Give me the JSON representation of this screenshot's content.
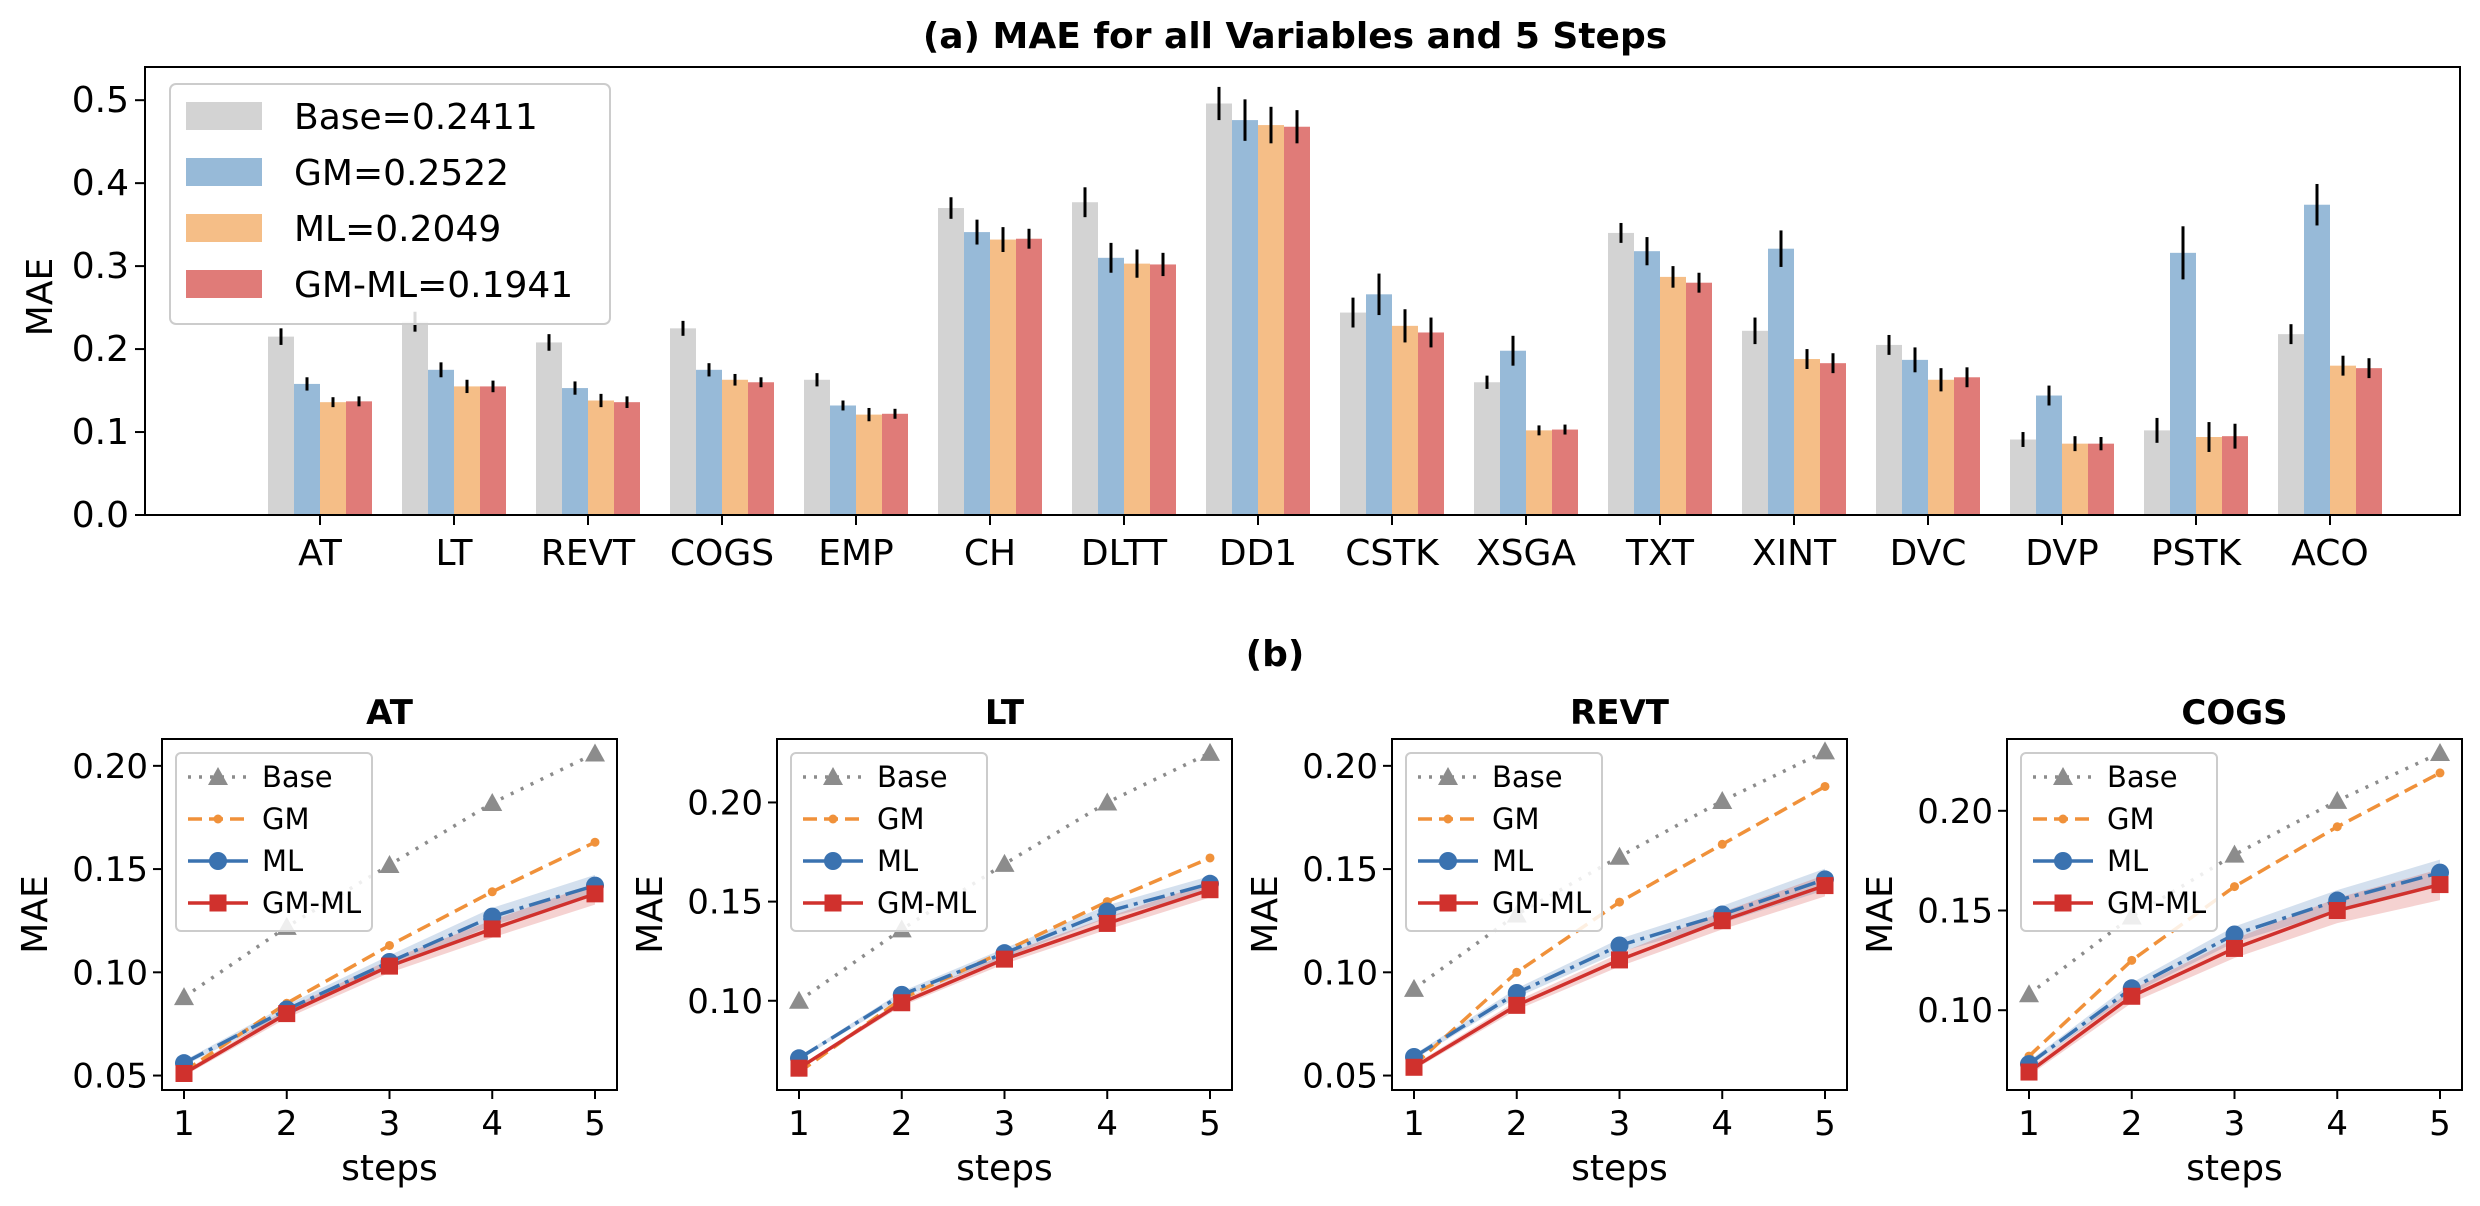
{
  "colors": {
    "Base_bar": "#d3d3d3",
    "GM_bar": "#97bad8",
    "ML_bar": "#f5be87",
    "GM-ML_bar": "#e07b78",
    "Base_line": "#8c8c8c",
    "GM_line": "#f0913a",
    "ML_line": "#3a72b0",
    "GM-ML_line": "#d0312d"
  },
  "chart_data": [
    {
      "id": "a",
      "type": "bar",
      "title": "(a) MAE for all Variables and 5 Steps",
      "xlabel": "",
      "ylabel": "MAE",
      "ylim": [
        0,
        0.54
      ],
      "yticks": [
        "0.0",
        "0.1",
        "0.2",
        "0.3",
        "0.4",
        "0.5"
      ],
      "legend_position": "top-left",
      "categories": [
        "AT",
        "LT",
        "REVT",
        "COGS",
        "EMP",
        "CH",
        "DLTT",
        "DD1",
        "CSTK",
        "XSGA",
        "TXT",
        "XINT",
        "DVC",
        "DVP",
        "PSTK",
        "ACO"
      ],
      "series": [
        {
          "name": "Base",
          "legend_label": "Base=0.2411",
          "values": [
            0.215,
            0.233,
            0.208,
            0.225,
            0.163,
            0.37,
            0.377,
            0.496,
            0.244,
            0.16,
            0.34,
            0.222,
            0.205,
            0.091,
            0.102,
            0.218
          ],
          "errors": [
            0.01,
            0.012,
            0.01,
            0.009,
            0.008,
            0.013,
            0.018,
            0.02,
            0.018,
            0.008,
            0.012,
            0.016,
            0.012,
            0.009,
            0.015,
            0.012
          ]
        },
        {
          "name": "GM",
          "legend_label": "GM=0.2522",
          "values": [
            0.158,
            0.175,
            0.153,
            0.175,
            0.132,
            0.341,
            0.31,
            0.476,
            0.266,
            0.198,
            0.318,
            0.321,
            0.187,
            0.144,
            0.316,
            0.374
          ],
          "errors": [
            0.008,
            0.009,
            0.008,
            0.008,
            0.006,
            0.015,
            0.018,
            0.025,
            0.025,
            0.018,
            0.017,
            0.022,
            0.015,
            0.012,
            0.032,
            0.025
          ]
        },
        {
          "name": "ML",
          "legend_label": "ML=0.2049",
          "values": [
            0.136,
            0.155,
            0.138,
            0.163,
            0.121,
            0.332,
            0.303,
            0.47,
            0.228,
            0.102,
            0.287,
            0.188,
            0.163,
            0.086,
            0.094,
            0.18
          ],
          "errors": [
            0.006,
            0.008,
            0.008,
            0.007,
            0.008,
            0.015,
            0.017,
            0.022,
            0.02,
            0.006,
            0.013,
            0.012,
            0.014,
            0.009,
            0.018,
            0.012
          ]
        },
        {
          "name": "GM-ML",
          "legend_label": "GM-ML=0.1941",
          "values": [
            0.137,
            0.155,
            0.136,
            0.16,
            0.122,
            0.333,
            0.302,
            0.468,
            0.22,
            0.103,
            0.28,
            0.183,
            0.166,
            0.086,
            0.095,
            0.177
          ],
          "errors": [
            0.006,
            0.007,
            0.007,
            0.006,
            0.006,
            0.012,
            0.014,
            0.02,
            0.018,
            0.006,
            0.012,
            0.012,
            0.012,
            0.008,
            0.015,
            0.012
          ]
        }
      ]
    },
    {
      "id": "b-AT",
      "type": "line",
      "panel_label": "(b)",
      "title": "AT",
      "xlabel": "steps",
      "ylabel": "MAE",
      "x": [
        1,
        2,
        3,
        4,
        5
      ],
      "xticks": [
        "1",
        "2",
        "3",
        "4",
        "5"
      ],
      "ylim": [
        0.043,
        0.213
      ],
      "yticks": [
        "0.05",
        "0.10",
        "0.15",
        "0.20"
      ],
      "ytick_values": [
        0.05,
        0.1,
        0.15,
        0.2
      ],
      "legend_position": "top-left",
      "series": [
        {
          "name": "Base",
          "values": [
            0.088,
            0.122,
            0.152,
            0.182,
            0.206
          ]
        },
        {
          "name": "GM",
          "values": [
            0.052,
            0.085,
            0.113,
            0.139,
            0.163
          ]
        },
        {
          "name": "ML",
          "values": [
            0.056,
            0.082,
            0.105,
            0.127,
            0.142
          ],
          "band": 0.004
        },
        {
          "name": "GM-ML",
          "values": [
            0.051,
            0.08,
            0.103,
            0.121,
            0.138
          ],
          "band": 0.004
        }
      ]
    },
    {
      "id": "b-LT",
      "type": "line",
      "title": "LT",
      "xlabel": "steps",
      "ylabel": "MAE",
      "x": [
        1,
        2,
        3,
        4,
        5
      ],
      "xticks": [
        "1",
        "2",
        "3",
        "4",
        "5"
      ],
      "ylim": [
        0.055,
        0.232
      ],
      "yticks": [
        "0.10",
        "0.15",
        "0.20"
      ],
      "ytick_values": [
        0.1,
        0.15,
        0.2
      ],
      "legend_position": "top-left",
      "series": [
        {
          "name": "Base",
          "values": [
            0.1,
            0.136,
            0.169,
            0.2,
            0.225
          ]
        },
        {
          "name": "GM",
          "values": [
            0.064,
            0.101,
            0.125,
            0.15,
            0.172
          ]
        },
        {
          "name": "ML",
          "values": [
            0.071,
            0.103,
            0.124,
            0.145,
            0.159
          ],
          "band": 0.003
        },
        {
          "name": "GM-ML",
          "values": [
            0.066,
            0.099,
            0.121,
            0.139,
            0.156
          ],
          "band": 0.003
        }
      ]
    },
    {
      "id": "b-REVT",
      "type": "line",
      "title": "REVT",
      "xlabel": "steps",
      "ylabel": "MAE",
      "x": [
        1,
        2,
        3,
        4,
        5
      ],
      "xticks": [
        "1",
        "2",
        "3",
        "4",
        "5"
      ],
      "ylim": [
        0.043,
        0.213
      ],
      "yticks": [
        "0.05",
        "0.10",
        "0.15",
        "0.20"
      ],
      "ytick_values": [
        0.05,
        0.1,
        0.15,
        0.2
      ],
      "legend_position": "top-left",
      "series": [
        {
          "name": "Base",
          "values": [
            0.092,
            0.128,
            0.156,
            0.183,
            0.207
          ]
        },
        {
          "name": "GM",
          "values": [
            0.055,
            0.1,
            0.134,
            0.162,
            0.19
          ]
        },
        {
          "name": "ML",
          "values": [
            0.059,
            0.09,
            0.113,
            0.128,
            0.145
          ],
          "band": 0.004
        },
        {
          "name": "GM-ML",
          "values": [
            0.054,
            0.084,
            0.106,
            0.125,
            0.142
          ],
          "band": 0.004
        }
      ]
    },
    {
      "id": "b-COGS",
      "type": "line",
      "title": "COGS",
      "xlabel": "steps",
      "ylabel": "MAE",
      "x": [
        1,
        2,
        3,
        4,
        5
      ],
      "xticks": [
        "1",
        "2",
        "3",
        "4",
        "5"
      ],
      "ylim": [
        0.06,
        0.236
      ],
      "yticks": [
        "0.10",
        "0.15",
        "0.20"
      ],
      "ytick_values": [
        0.1,
        0.15,
        0.2
      ],
      "legend_position": "top-left",
      "series": [
        {
          "name": "Base",
          "values": [
            0.108,
            0.147,
            0.178,
            0.205,
            0.229
          ]
        },
        {
          "name": "GM",
          "values": [
            0.077,
            0.125,
            0.162,
            0.192,
            0.219
          ]
        },
        {
          "name": "ML",
          "values": [
            0.073,
            0.111,
            0.138,
            0.155,
            0.169
          ],
          "band": 0.005
        },
        {
          "name": "GM-ML",
          "values": [
            0.069,
            0.107,
            0.131,
            0.15,
            0.163
          ],
          "band": 0.006
        }
      ]
    }
  ]
}
